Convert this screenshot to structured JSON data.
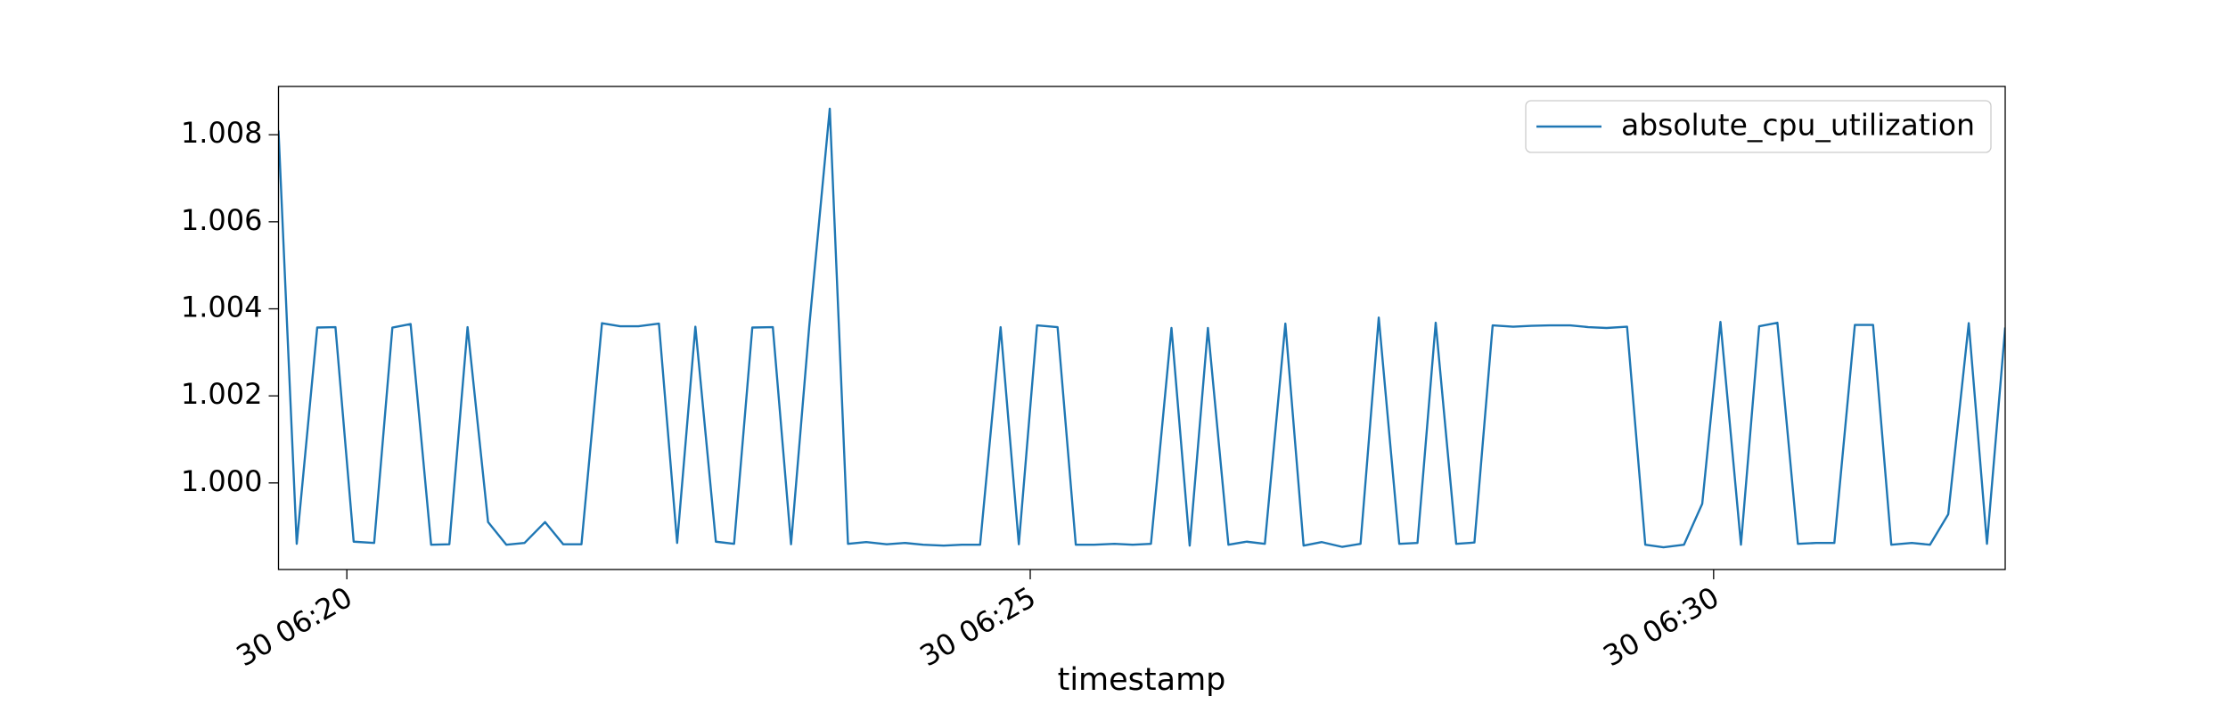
{
  "chart_data": {
    "type": "line",
    "x_label": "timestamp",
    "x": [
      "30 06:19:30",
      "30 06:19:38",
      "30 06:19:47",
      "30 06:19:55",
      "30 06:20:03",
      "30 06:20:12",
      "30 06:20:20",
      "30 06:20:28",
      "30 06:20:37",
      "30 06:20:45",
      "30 06:20:53",
      "30 06:21:02",
      "30 06:21:10",
      "30 06:21:18",
      "30 06:21:27",
      "30 06:21:35",
      "30 06:21:43",
      "30 06:21:52",
      "30 06:22:00",
      "30 06:22:08",
      "30 06:22:17",
      "30 06:22:25",
      "30 06:22:33",
      "30 06:22:42",
      "30 06:22:50",
      "30 06:22:58",
      "30 06:23:07",
      "30 06:23:15",
      "30 06:23:23",
      "30 06:23:32",
      "30 06:23:40",
      "30 06:23:48",
      "30 06:23:57",
      "30 06:24:05",
      "30 06:24:13",
      "30 06:24:22",
      "30 06:24:30",
      "30 06:24:38",
      "30 06:24:47",
      "30 06:24:55",
      "30 06:25:03",
      "30 06:25:12",
      "30 06:25:20",
      "30 06:25:28",
      "30 06:25:37",
      "30 06:25:45",
      "30 06:25:53",
      "30 06:26:02",
      "30 06:26:10",
      "30 06:26:18",
      "30 06:26:27",
      "30 06:26:35",
      "30 06:26:43",
      "30 06:26:52",
      "30 06:27:00",
      "30 06:27:08",
      "30 06:27:17",
      "30 06:27:25",
      "30 06:27:33",
      "30 06:27:42",
      "30 06:27:50",
      "30 06:27:58",
      "30 06:28:07",
      "30 06:28:15",
      "30 06:28:23",
      "30 06:28:32",
      "30 06:28:40",
      "30 06:28:48",
      "30 06:28:57",
      "30 06:29:05",
      "30 06:29:13",
      "30 06:29:22",
      "30 06:29:30",
      "30 06:29:38",
      "30 06:29:47",
      "30 06:29:55",
      "30 06:30:03",
      "30 06:30:12",
      "30 06:30:20",
      "30 06:30:28",
      "30 06:30:37",
      "30 06:30:45",
      "30 06:30:53",
      "30 06:31:02",
      "30 06:31:10",
      "30 06:31:18",
      "30 06:31:27",
      "30 06:31:35",
      "30 06:31:43",
      "30 06:31:52",
      "30 06:32:00",
      "30 06:32:08"
    ],
    "series": [
      {
        "name": "absolute_cpu_utilization",
        "color": "#1f77b4",
        "values": [
          1.0081,
          0.9986,
          1.00357,
          1.00358,
          0.99865,
          0.99862,
          1.00357,
          1.00365,
          0.99858,
          0.99859,
          1.00358,
          0.9991,
          0.99858,
          0.99862,
          0.9991,
          0.99859,
          0.99859,
          1.00367,
          1.0036,
          1.0036,
          1.00366,
          0.99862,
          1.00359,
          0.99865,
          0.9986,
          1.00357,
          1.00358,
          0.99859,
          1.0036,
          1.0086,
          0.9986,
          0.99864,
          0.99859,
          0.99862,
          0.99858,
          0.99856,
          0.99858,
          0.99858,
          1.00358,
          0.99859,
          1.00362,
          1.00358,
          0.99858,
          0.99858,
          0.9986,
          0.99858,
          0.9986,
          1.00356,
          0.99856,
          1.00356,
          0.99858,
          0.99865,
          0.9986,
          1.00366,
          0.99856,
          0.99864,
          0.99853,
          0.9986,
          1.0038,
          0.9986,
          0.99862,
          1.00368,
          0.9986,
          0.99863,
          1.00362,
          1.00359,
          1.00361,
          1.00362,
          1.00362,
          1.00358,
          1.00356,
          1.00359,
          0.99858,
          0.99852,
          0.99858,
          0.99952,
          1.0037,
          0.99858,
          1.0036,
          1.00368,
          0.9986,
          0.99862,
          0.99862,
          1.00363,
          1.00363,
          0.99858,
          0.99862,
          0.99858,
          0.99928,
          1.00367,
          0.9986,
          1.00357
        ]
      }
    ],
    "xlim": [
      "30 06:19:30",
      "30 06:32:08"
    ],
    "xticks": [
      {
        "value": "30 06:20:00",
        "label": "30 06:20"
      },
      {
        "value": "30 06:25:00",
        "label": "30 06:25"
      },
      {
        "value": "30 06:30:00",
        "label": "30 06:30"
      }
    ],
    "ylim": [
      0.99801,
      1.00911
    ],
    "yticks": [
      {
        "value": 1,
        "label": "1.000"
      },
      1.002,
      1.004,
      1.006,
      1.008
    ],
    "legend": "upper right"
  }
}
